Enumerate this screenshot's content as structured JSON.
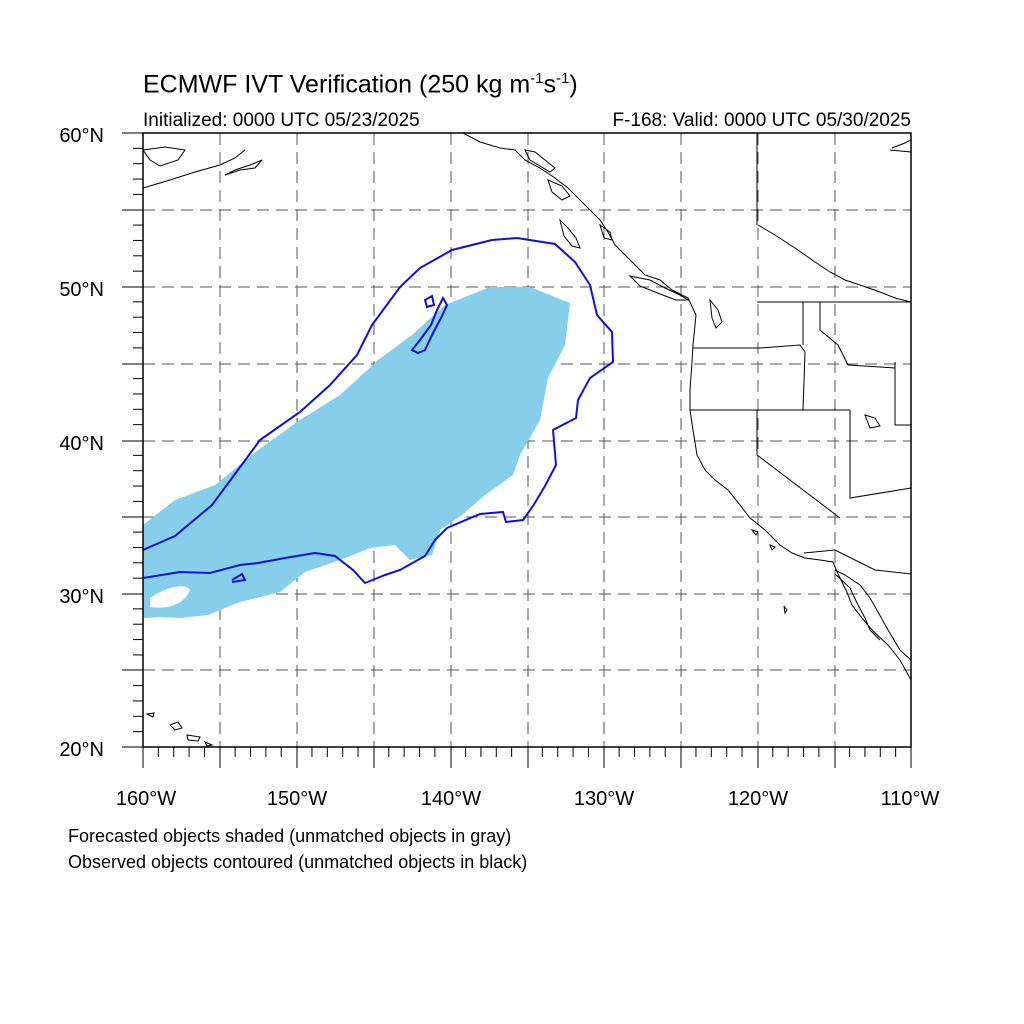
{
  "title": {
    "main": "ECMWF IVT Verification (250 kg m",
    "exp1": "-1",
    "mid": "s",
    "exp2": "-1",
    "end": ")"
  },
  "subtitle_left": "Initialized: 0000 UTC 05/23/2025",
  "subtitle_right": "F-168: Valid: 0000 UTC 05/30/2025",
  "footnotes": [
    "Forecasted objects shaded (unmatched objects in gray)",
    "Observed objects contoured (unmatched objects in black)"
  ],
  "map": {
    "lon_range": [
      -160,
      -110
    ],
    "lat_range": [
      20,
      60
    ],
    "lat_ticks": [
      {
        "value": 60,
        "label": "60°N"
      },
      {
        "value": 50,
        "label": "50°N"
      },
      {
        "value": 40,
        "label": "40°N"
      },
      {
        "value": 30,
        "label": "30°N"
      },
      {
        "value": 20,
        "label": "20°N"
      }
    ],
    "lon_ticks": [
      {
        "value": -160,
        "label": "160°W"
      },
      {
        "value": -150,
        "label": "150°W"
      },
      {
        "value": -140,
        "label": "140°W"
      },
      {
        "value": -130,
        "label": "130°W"
      },
      {
        "value": -120,
        "label": "120°W"
      },
      {
        "value": -110,
        "label": "110°W"
      }
    ],
    "grid": "dashed every 5 degrees",
    "colors": {
      "forecast_fill": "#87ceeb",
      "observed_contour": "#1010dd",
      "coastline": "#000000",
      "grid": "#555555"
    }
  }
}
